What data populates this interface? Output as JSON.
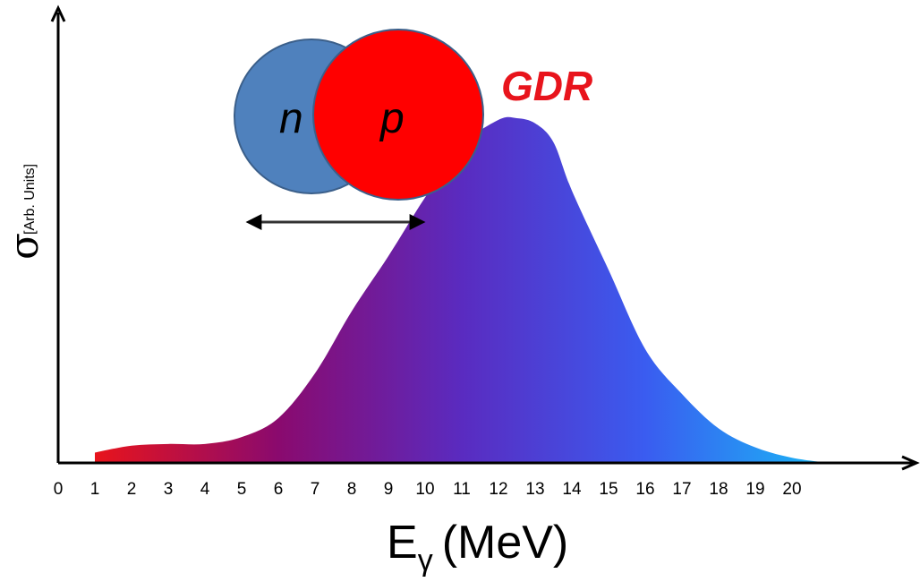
{
  "chart_data": {
    "type": "area",
    "title": "",
    "annotation": "GDR",
    "xlabel": {
      "main": "E",
      "subscript": "γ",
      "unit": "(MeV)"
    },
    "ylabel": {
      "symbol": "σ",
      "unit": "[Arb. Units]"
    },
    "xlim": [
      0,
      22
    ],
    "ylim": [
      0,
      1.0
    ],
    "x_ticks": [
      "0",
      "1",
      "2",
      "3",
      "4",
      "5",
      "6",
      "7",
      "8",
      "9",
      "10",
      "11",
      "12",
      "13",
      "14",
      "15",
      "16",
      "17",
      "18",
      "19",
      "20"
    ],
    "grid": false,
    "gradient_colors": [
      "#e8141c",
      "#8a0a6e",
      "#5a2bc0",
      "#3a5cf0",
      "#1ab8f5"
    ],
    "series": [
      {
        "x": [
          1,
          2,
          3,
          4,
          5,
          6,
          7,
          8,
          9,
          10,
          11,
          12,
          12.5,
          13,
          13.5,
          14,
          15,
          16,
          17,
          18,
          19,
          20,
          21
        ],
        "y": [
          0.03,
          0.05,
          0.055,
          0.055,
          0.075,
          0.13,
          0.26,
          0.44,
          0.6,
          0.77,
          0.92,
          0.995,
          1.0,
          0.985,
          0.93,
          0.79,
          0.56,
          0.33,
          0.2,
          0.1,
          0.045,
          0.015,
          0.0
        ]
      }
    ],
    "inset": {
      "neutron_label": "n",
      "proton_label": "p",
      "neutron_color": "#4f81bd",
      "proton_color": "#ff0000"
    }
  }
}
